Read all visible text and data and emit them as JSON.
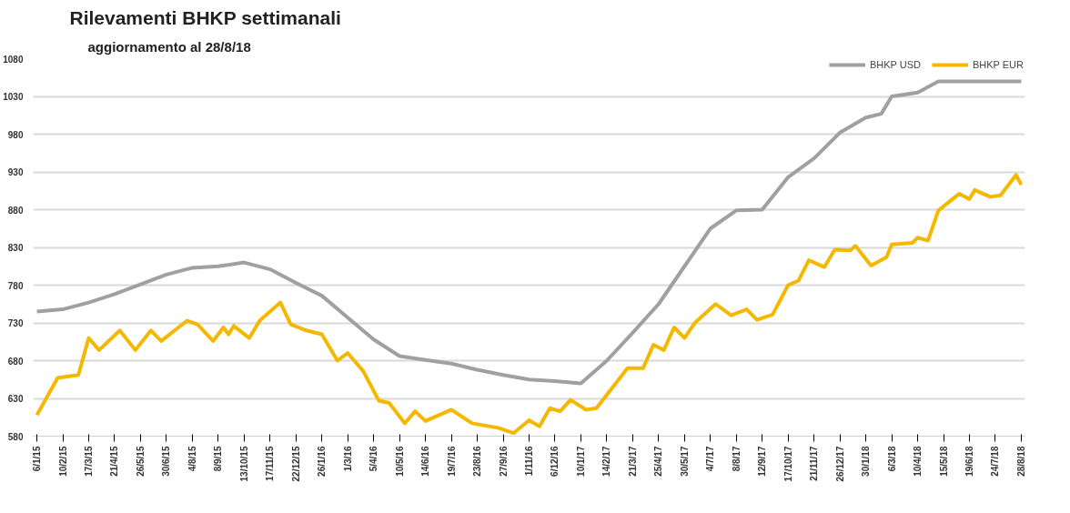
{
  "chart_data": {
    "type": "line",
    "title": "Rilevamenti BHKP settimanali",
    "subtitle": "aggiornamento al 28/8/18",
    "xlim": [
      "2015-01-01",
      "2018-09-02"
    ],
    "ylim": [
      580,
      1080
    ],
    "yticks": [
      580,
      630,
      680,
      730,
      780,
      830,
      880,
      930,
      980,
      1030,
      1080
    ],
    "xticks": [
      {
        "value": "2015-01-06",
        "label": "6/1/15"
      },
      {
        "value": "2015-02-10",
        "label": "10/2/15"
      },
      {
        "value": "2015-03-17",
        "label": "17/3/15"
      },
      {
        "value": "2015-04-21",
        "label": "21/4/15"
      },
      {
        "value": "2015-05-26",
        "label": "26/5/15"
      },
      {
        "value": "2015-06-30",
        "label": "30/6/15"
      },
      {
        "value": "2015-08-04",
        "label": "4/8/15"
      },
      {
        "value": "2015-09-08",
        "label": "8/9/15"
      },
      {
        "value": "2015-10-13",
        "label": "13/10/15"
      },
      {
        "value": "2015-11-17",
        "label": "17/11/15"
      },
      {
        "value": "2015-12-22",
        "label": "22/12/15"
      },
      {
        "value": "2016-01-26",
        "label": "26/1/16"
      },
      {
        "value": "2016-03-01",
        "label": "1/3/16"
      },
      {
        "value": "2016-04-05",
        "label": "5/4/16"
      },
      {
        "value": "2016-05-10",
        "label": "10/5/16"
      },
      {
        "value": "2016-06-14",
        "label": "14/6/16"
      },
      {
        "value": "2016-07-19",
        "label": "19/7/16"
      },
      {
        "value": "2016-08-23",
        "label": "23/8/16"
      },
      {
        "value": "2016-09-27",
        "label": "27/9/16"
      },
      {
        "value": "2016-11-01",
        "label": "1/11/16"
      },
      {
        "value": "2016-12-06",
        "label": "6/12/16"
      },
      {
        "value": "2017-01-10",
        "label": "10/1/17"
      },
      {
        "value": "2017-02-14",
        "label": "14/2/17"
      },
      {
        "value": "2017-03-21",
        "label": "21/3/17"
      },
      {
        "value": "2017-04-25",
        "label": "25/4/17"
      },
      {
        "value": "2017-05-30",
        "label": "30/5/17"
      },
      {
        "value": "2017-07-04",
        "label": "4/7/17"
      },
      {
        "value": "2017-08-08",
        "label": "8/8/17"
      },
      {
        "value": "2017-09-12",
        "label": "12/9/17"
      },
      {
        "value": "2017-10-17",
        "label": "17/10/17"
      },
      {
        "value": "2017-11-21",
        "label": "21/11/17"
      },
      {
        "value": "2017-12-26",
        "label": "26/12/17"
      },
      {
        "value": "2018-01-30",
        "label": "30/1/18"
      },
      {
        "value": "2018-03-06",
        "label": "6/3/18"
      },
      {
        "value": "2018-04-10",
        "label": "10/4/18"
      },
      {
        "value": "2018-05-15",
        "label": "15/5/18"
      },
      {
        "value": "2018-06-19",
        "label": "19/6/18"
      },
      {
        "value": "2018-07-24",
        "label": "24/7/18"
      },
      {
        "value": "2018-08-28",
        "label": "28/8/18"
      }
    ],
    "grid": "y",
    "legend": "top right",
    "marker": "none",
    "line_style": "solid",
    "series": [
      {
        "name": "BHKP USD",
        "color": "#a0a0a0",
        "x": [
          "2015-01-06",
          "2015-02-10",
          "2015-03-17",
          "2015-04-21",
          "2015-05-26",
          "2015-06-30",
          "2015-08-04",
          "2015-09-08",
          "2015-10-13",
          "2015-11-17",
          "2015-12-22",
          "2016-01-26",
          "2016-03-01",
          "2016-04-05",
          "2016-05-10",
          "2016-06-14",
          "2016-07-19",
          "2016-08-23",
          "2016-09-27",
          "2016-11-01",
          "2016-12-06",
          "2017-01-10",
          "2017-02-14",
          "2017-03-21",
          "2017-04-25",
          "2017-05-30",
          "2017-07-04",
          "2017-08-08",
          "2017-09-12",
          "2017-10-17",
          "2017-11-21",
          "2017-12-26",
          "2018-01-30",
          "2018-02-20",
          "2018-03-06",
          "2018-04-10",
          "2018-05-08",
          "2018-06-19",
          "2018-07-24",
          "2018-08-28"
        ],
        "values": [
          745,
          748,
          757,
          768,
          781,
          794,
          803,
          805,
          810,
          801,
          783,
          766,
          737,
          708,
          686,
          681,
          676,
          668,
          661,
          655,
          653,
          650,
          680,
          717,
          755,
          805,
          855,
          879,
          880,
          923,
          948,
          982,
          1002,
          1007,
          1030,
          1035,
          1050,
          1050,
          1050,
          1050
        ]
      },
      {
        "name": "BHKP EUR",
        "color": "#f5b800",
        "x": [
          "2015-01-06",
          "2015-02-03",
          "2015-03-03",
          "2015-03-17",
          "2015-03-31",
          "2015-04-28",
          "2015-05-19",
          "2015-06-09",
          "2015-06-23",
          "2015-07-28",
          "2015-08-11",
          "2015-09-01",
          "2015-09-15",
          "2015-09-22",
          "2015-09-29",
          "2015-10-20",
          "2015-11-03",
          "2015-12-01",
          "2015-12-15",
          "2016-01-05",
          "2016-01-26",
          "2016-02-16",
          "2016-03-01",
          "2016-03-22",
          "2016-04-12",
          "2016-04-26",
          "2016-05-17",
          "2016-05-31",
          "2016-06-14",
          "2016-07-19",
          "2016-08-16",
          "2016-09-20",
          "2016-10-11",
          "2016-11-01",
          "2016-11-15",
          "2016-11-29",
          "2016-12-13",
          "2016-12-27",
          "2017-01-17",
          "2017-01-31",
          "2017-03-14",
          "2017-04-04",
          "2017-04-18",
          "2017-05-02",
          "2017-05-16",
          "2017-05-30",
          "2017-06-13",
          "2017-07-11",
          "2017-08-01",
          "2017-08-22",
          "2017-09-05",
          "2017-09-26",
          "2017-10-17",
          "2017-10-31",
          "2017-11-14",
          "2017-12-05",
          "2017-12-19",
          "2018-01-09",
          "2018-01-16",
          "2018-02-06",
          "2018-02-27",
          "2018-03-06",
          "2018-04-03",
          "2018-04-10",
          "2018-04-24",
          "2018-05-08",
          "2018-06-05",
          "2018-06-19",
          "2018-06-26",
          "2018-07-17",
          "2018-07-31",
          "2018-08-21",
          "2018-08-28"
        ],
        "values": [
          608,
          657,
          661,
          710,
          694,
          720,
          694,
          720,
          706,
          733,
          728,
          706,
          724,
          715,
          726,
          710,
          733,
          757,
          728,
          720,
          715,
          680,
          690,
          666,
          627,
          624,
          597,
          613,
          600,
          615,
          597,
          591,
          584,
          601,
          593,
          617,
          613,
          628,
          615,
          617,
          670,
          670,
          701,
          694,
          724,
          710,
          730,
          755,
          740,
          748,
          734,
          741,
          780,
          786,
          813,
          804,
          827,
          826,
          832,
          806,
          817,
          834,
          836,
          843,
          839,
          879,
          901,
          894,
          906,
          897,
          899,
          926,
          913
        ]
      }
    ]
  }
}
